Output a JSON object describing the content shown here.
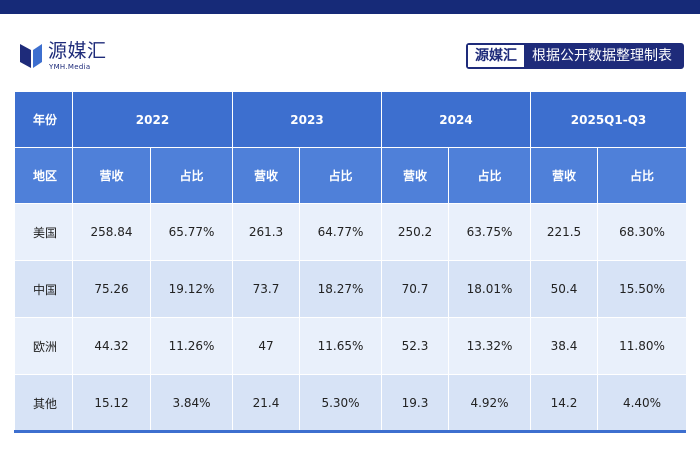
{
  "brand": {
    "name": "源媒汇",
    "sub": "YMH.Media"
  },
  "source_box": {
    "brand": "源媒汇",
    "note": "根据公开数据整理制表"
  },
  "table": {
    "corner_year": "年份",
    "corner_region": "地区",
    "years": [
      "2022",
      "2023",
      "2024",
      "2025Q1-Q3"
    ],
    "revenue_label": "营收",
    "share_label": "占比",
    "rows": [
      {
        "region": "美国",
        "cells": [
          "258.84",
          "65.77%",
          "261.3",
          "64.77%",
          "250.2",
          "63.75%",
          "221.5",
          "68.30%"
        ]
      },
      {
        "region": "中国",
        "cells": [
          "75.26",
          "19.12%",
          "73.7",
          "18.27%",
          "70.7",
          "18.01%",
          "50.4",
          "15.50%"
        ]
      },
      {
        "region": "欧洲",
        "cells": [
          "44.32",
          "11.26%",
          "47",
          "11.65%",
          "52.3",
          "13.32%",
          "38.4",
          "11.80%"
        ]
      },
      {
        "region": "其他",
        "cells": [
          "15.12",
          "3.84%",
          "21.4",
          "5.30%",
          "19.3",
          "4.92%",
          "14.2",
          "4.40%"
        ]
      }
    ]
  }
}
